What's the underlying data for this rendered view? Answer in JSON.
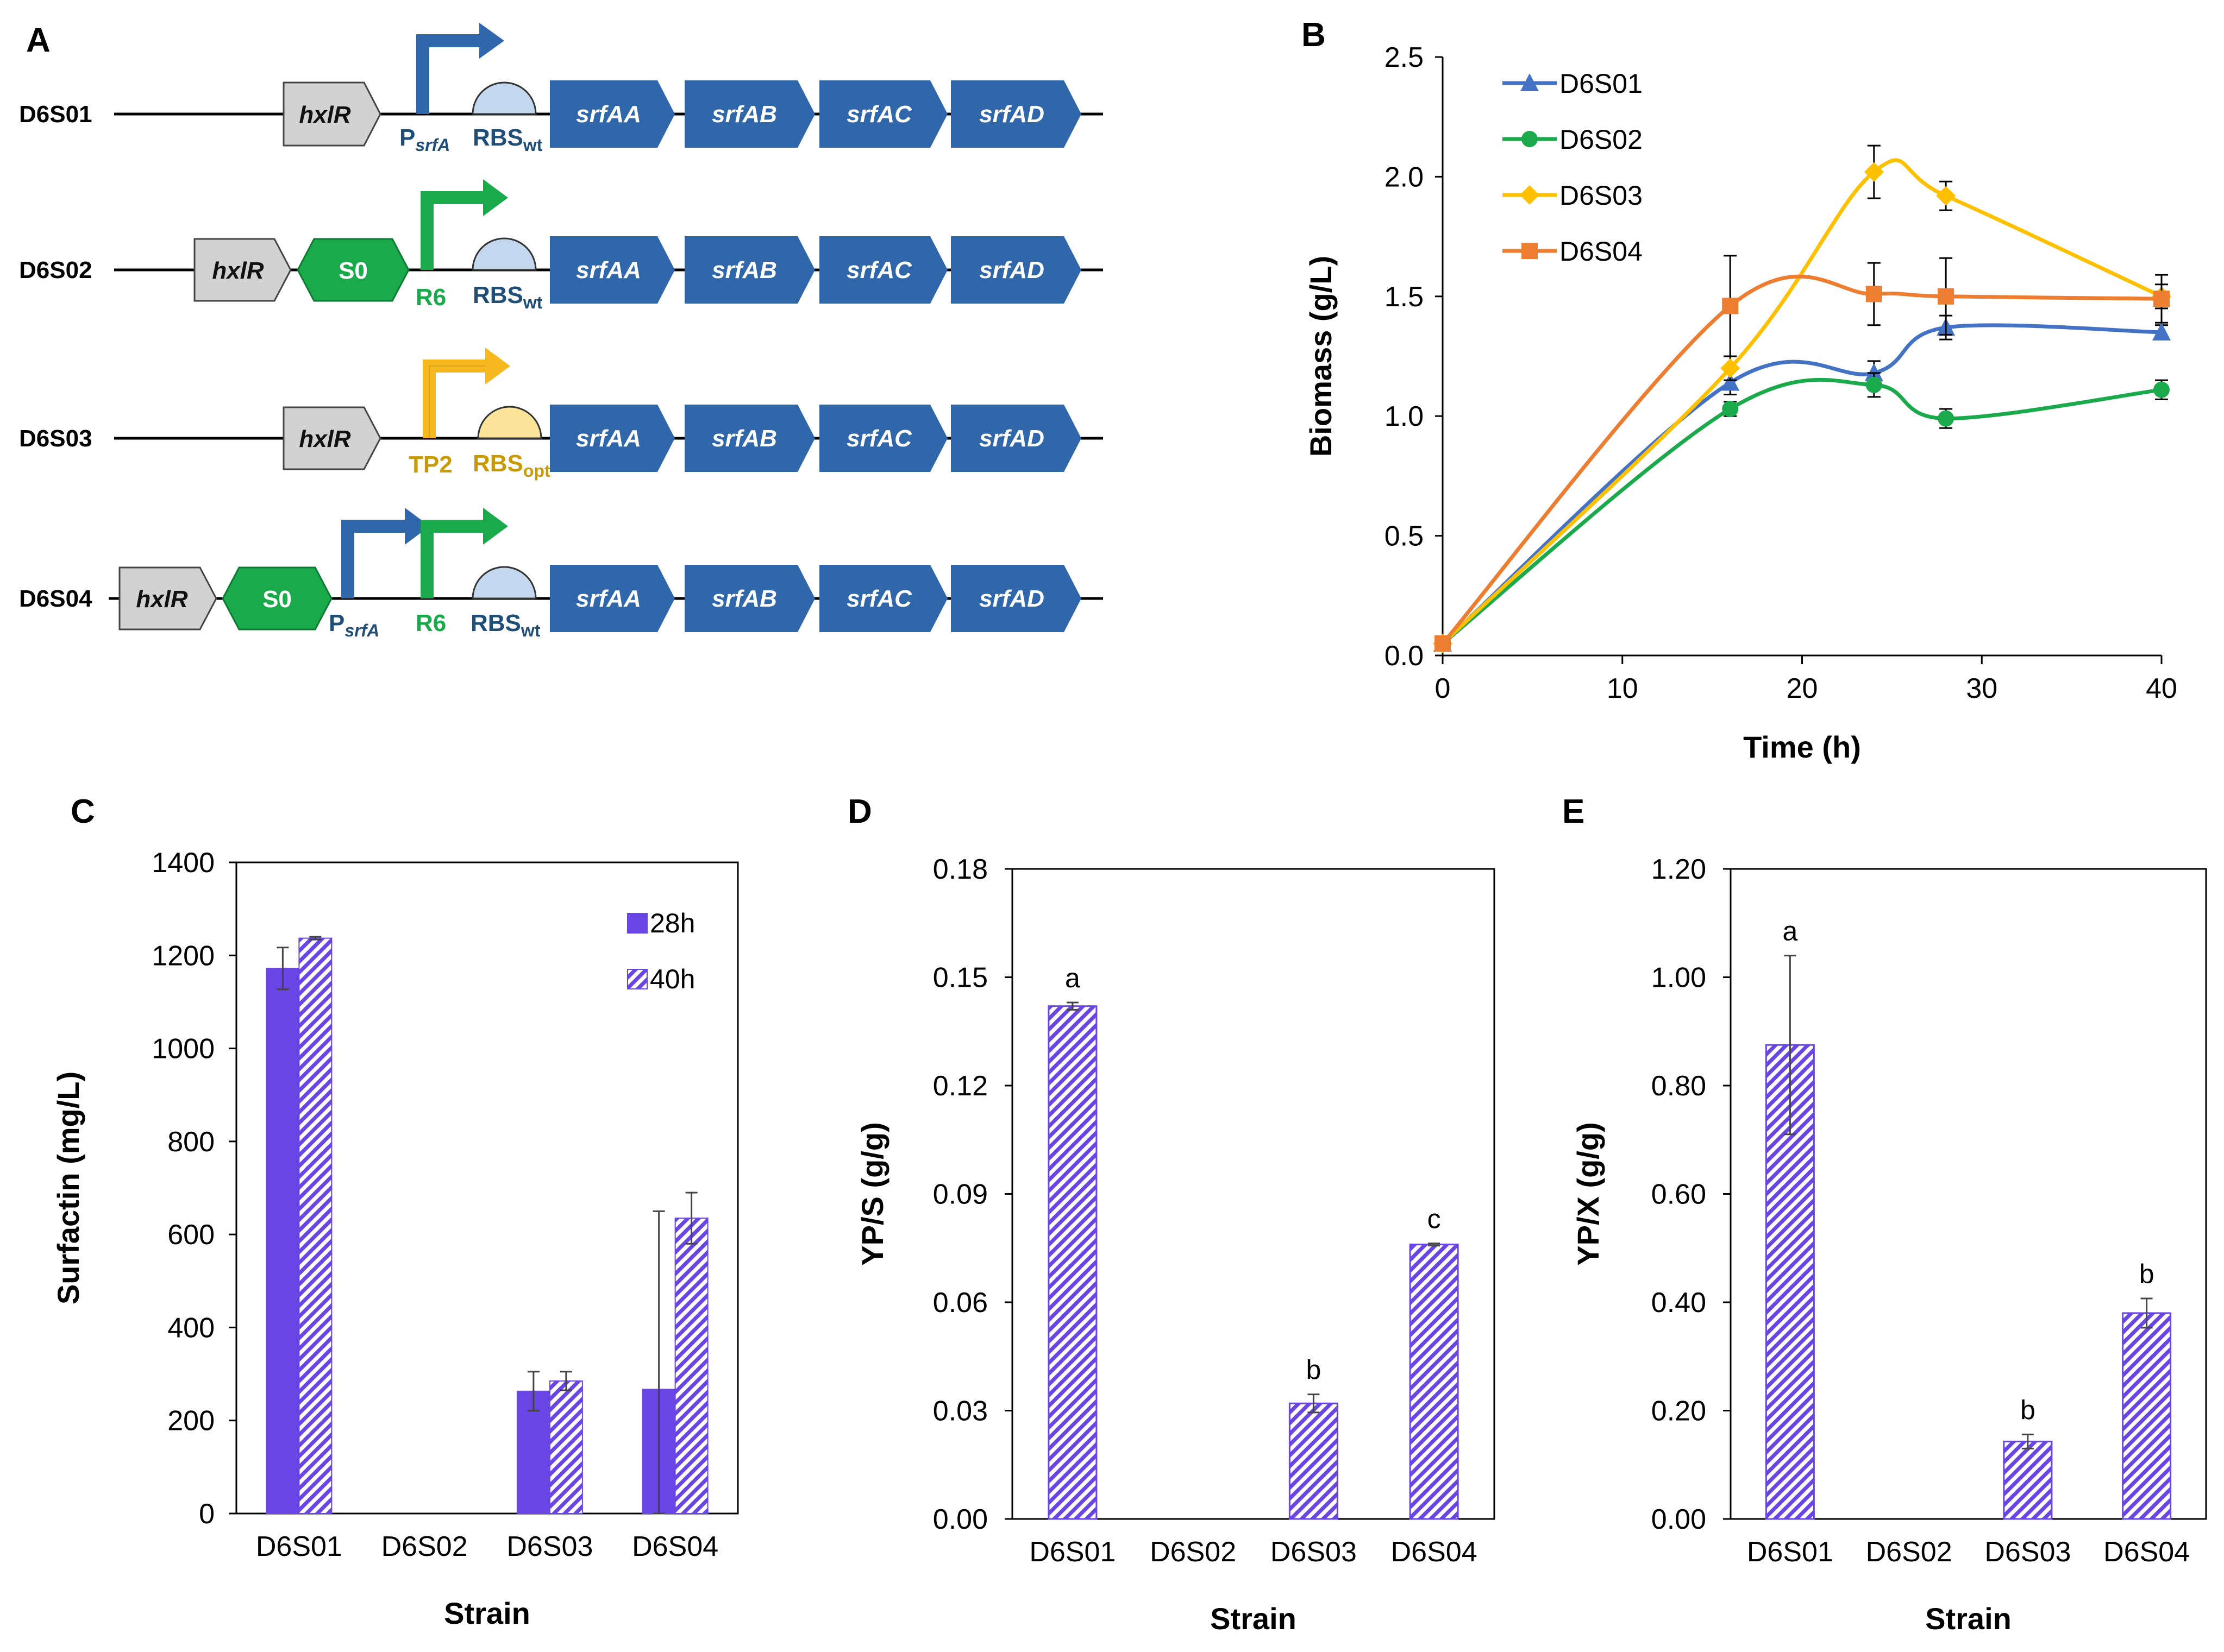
{
  "panel_letters": {
    "a": "A",
    "b": "B",
    "c": "C",
    "d": "D",
    "e": "E"
  },
  "colors": {
    "blue_gene": "#2f67aa",
    "gray_part": "#d2d2d2",
    "green": "#1aaa4b",
    "yellow": "#f5b81e",
    "rbs_wt": "#c3d8ee",
    "rbs_opt": "#fbe39a",
    "bar_purple": "#6a45e6",
    "line_blue": "#4472c4",
    "line_green": "#1aaa4b",
    "line_yellow": "#ffc000",
    "line_orange": "#ed7d31"
  },
  "constructs": [
    {
      "name": "D6S01",
      "parts": {
        "hxlr": "hxlR",
        "promoter": "P",
        "promoter_sub": "srfA",
        "rbs": "RBS",
        "rbs_sub": "wt"
      }
    },
    {
      "name": "D6S02",
      "parts": {
        "hxlr": "hxlR",
        "s0": "S0",
        "promoter": "R6",
        "rbs": "RBS",
        "rbs_sub": "wt"
      }
    },
    {
      "name": "D6S03",
      "parts": {
        "hxlr": "hxlR",
        "promoter": "TP2",
        "rbs": "RBS",
        "rbs_sub": "opt"
      }
    },
    {
      "name": "D6S04",
      "parts": {
        "hxlr": "hxlR",
        "s0": "S0",
        "promoter1": "P",
        "promoter1_sub": "srfA",
        "promoter2": "R6",
        "rbs": "RBS",
        "rbs_sub": "wt"
      }
    }
  ],
  "genes": [
    "srfAA",
    "srfAB",
    "srfAC",
    "srfAD"
  ],
  "chart_data": [
    {
      "panel": "B",
      "type": "line",
      "xlabel": "Time (h)",
      "ylabel": "Biomass (g/L)",
      "xlim": [
        0,
        40
      ],
      "ylim": [
        0,
        2.5
      ],
      "xticks": [
        "0",
        "10",
        "20",
        "30",
        "40"
      ],
      "yticks": [
        "0.0",
        "0.5",
        "1.0",
        "1.5",
        "2.0",
        "2.5"
      ],
      "x": [
        0,
        16,
        24,
        28,
        40
      ],
      "legend_position": "top-left",
      "series": [
        {
          "name": "D6S01",
          "marker": "triangle",
          "values": [
            0.05,
            1.14,
            1.18,
            1.37,
            1.35
          ],
          "errors": [
            0,
            0.05,
            0.05,
            0.05,
            0.03
          ]
        },
        {
          "name": "D6S02",
          "marker": "circle",
          "values": [
            0.05,
            1.03,
            1.13,
            0.99,
            1.11
          ],
          "errors": [
            0,
            0.03,
            0.05,
            0.04,
            0.04
          ]
        },
        {
          "name": "D6S03",
          "marker": "diamond",
          "values": [
            0.05,
            1.2,
            2.02,
            1.92,
            1.5
          ],
          "errors": [
            0,
            0.05,
            0.11,
            0.06,
            0.05
          ]
        },
        {
          "name": "D6S04",
          "marker": "square",
          "values": [
            0.05,
            1.46,
            1.51,
            1.5,
            1.49
          ],
          "errors": [
            0,
            0.21,
            0.13,
            0.16,
            0.1
          ]
        }
      ]
    },
    {
      "panel": "C",
      "type": "bar",
      "xlabel": "Strain",
      "ylabel": "Surfactin (mg/L)",
      "ylim": [
        0,
        1400
      ],
      "yticks": [
        "0",
        "200",
        "400",
        "600",
        "800",
        "1000",
        "1200",
        "1400"
      ],
      "categories": [
        "D6S01",
        "D6S02",
        "D6S03",
        "D6S04"
      ],
      "legend_position": "top-right",
      "series": [
        {
          "name": "28h",
          "pattern": "solid",
          "values": [
            1172,
            0,
            263,
            267
          ],
          "errors": [
            45,
            0,
            42,
            383
          ]
        },
        {
          "name": "40h",
          "pattern": "hatched",
          "values": [
            1237,
            0,
            285,
            635
          ],
          "errors": [
            3,
            0,
            20,
            55
          ]
        }
      ]
    },
    {
      "panel": "D",
      "type": "bar",
      "xlabel": "Strain",
      "ylabel": "YP/S (g/g)",
      "ylim": [
        0,
        0.18
      ],
      "yticks": [
        "0.00",
        "0.03",
        "0.06",
        "0.09",
        "0.12",
        "0.15",
        "0.18"
      ],
      "categories": [
        "D6S01",
        "D6S02",
        "D6S03",
        "D6S04"
      ],
      "values": [
        0.142,
        0,
        0.032,
        0.076
      ],
      "errors": [
        0.001,
        0,
        0.0025,
        0.0003
      ],
      "significance": [
        "a",
        "",
        "b",
        "c"
      ]
    },
    {
      "panel": "E",
      "type": "bar",
      "xlabel": "Strain",
      "ylabel": "YP/X (g/g)",
      "ylim": [
        0,
        1.2
      ],
      "yticks": [
        "0.00",
        "0.20",
        "0.40",
        "0.60",
        "0.80",
        "1.00",
        "1.20"
      ],
      "categories": [
        "D6S01",
        "D6S02",
        "D6S03",
        "D6S04"
      ],
      "values": [
        0.875,
        0,
        0.143,
        0.38
      ],
      "errors": [
        0.165,
        0,
        0.013,
        0.027
      ],
      "significance": [
        "a",
        "",
        "b",
        "b"
      ]
    }
  ]
}
